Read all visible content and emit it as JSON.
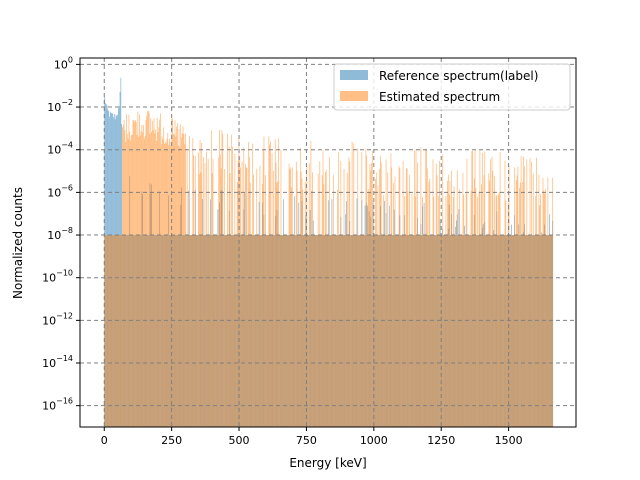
{
  "chart_data": {
    "type": "bar",
    "title": "",
    "xlabel": "Energy [keV]",
    "ylabel": "Normalized counts",
    "xlim": [
      -90,
      1750
    ],
    "ylim_exponent": [
      -17,
      0.3
    ],
    "y_scale": "log",
    "x_ticks": [
      0,
      250,
      500,
      750,
      1000,
      1250,
      1500
    ],
    "x_tick_labels": [
      "0",
      "250",
      "500",
      "750",
      "1000",
      "1250",
      "1500"
    ],
    "y_ticks_exponent": [
      0,
      -2,
      -4,
      -6,
      -8,
      -10,
      -12,
      -14,
      -16
    ],
    "y_tick_labels": [
      {
        "base": "10",
        "exp": "0"
      },
      {
        "base": "10",
        "exp": "−2"
      },
      {
        "base": "10",
        "exp": "−4"
      },
      {
        "base": "10",
        "exp": "−6"
      },
      {
        "base": "10",
        "exp": "−8"
      },
      {
        "base": "10",
        "exp": "−10"
      },
      {
        "base": "10",
        "exp": "−12"
      },
      {
        "base": "10",
        "exp": "−14"
      },
      {
        "base": "10",
        "exp": "−16"
      }
    ],
    "grid": true,
    "grid_color": "#808080",
    "grid_style": "dashed",
    "legend_placement": "top-right",
    "floor_value": 1e-08,
    "bin_width_keV": 3,
    "energy_range_keV": [
      0,
      1662
    ],
    "series": [
      {
        "name": "Reference spectrum(label)",
        "color": "#1f77b4",
        "alpha": 0.5,
        "description_points": [
          {
            "x": 0,
            "y": 0.03
          },
          {
            "x": 10,
            "y": 0.008
          },
          {
            "x": 20,
            "y": 0.005
          },
          {
            "x": 40,
            "y": 0.004
          },
          {
            "x": 55,
            "y": 0.01
          },
          {
            "x": 60,
            "y": 0.4
          },
          {
            "x": 65,
            "y": 5e-05
          },
          {
            "x": 100,
            "y": 6e-06
          },
          {
            "x": 200,
            "y": 5e-06
          },
          {
            "x": 400,
            "y": 2e-06
          },
          {
            "x": 600,
            "y": 1e-06
          },
          {
            "x": 1000,
            "y": 5e-07
          },
          {
            "x": 1400,
            "y": 2e-07
          }
        ]
      },
      {
        "name": "Estimated spectrum",
        "color": "#ff7f0e",
        "alpha": 0.5,
        "description_points": [
          {
            "x": 70,
            "y": 0.005
          },
          {
            "x": 130,
            "y": 0.01
          },
          {
            "x": 180,
            "y": 0.008
          },
          {
            "x": 250,
            "y": 0.003
          },
          {
            "x": 400,
            "y": 0.001
          },
          {
            "x": 600,
            "y": 0.0005
          },
          {
            "x": 800,
            "y": 0.0003
          },
          {
            "x": 1000,
            "y": 0.0002
          },
          {
            "x": 1200,
            "y": 0.00015
          },
          {
            "x": 1400,
            "y": 0.0001
          },
          {
            "x": 1600,
            "y": 8e-05
          }
        ]
      }
    ]
  }
}
